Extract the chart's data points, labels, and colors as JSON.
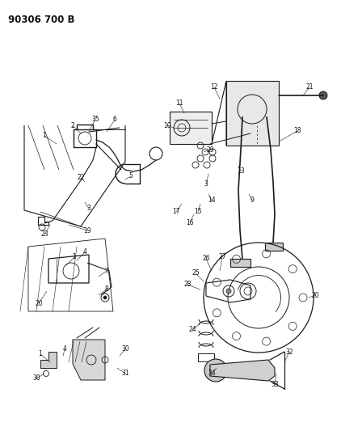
{
  "title": "90306 700 B",
  "bg_color": "#ffffff",
  "line_color": "#1a1a1a",
  "label_color": "#111111",
  "label_fontsize": 5.5,
  "title_fontsize": 8.5,
  "title_bold": true
}
